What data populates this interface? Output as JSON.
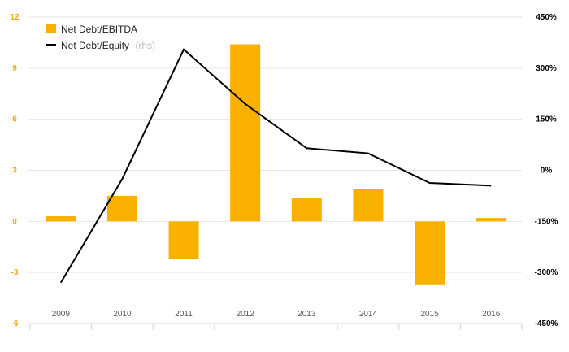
{
  "chart_data": {
    "type": "bar",
    "categories": [
      "2009",
      "2010",
      "2011",
      "2012",
      "2013",
      "2014",
      "2015",
      "2016"
    ],
    "series": [
      {
        "name": "Net Debt/EBITDA",
        "type": "bar",
        "axis": "left",
        "color": "#f9b000",
        "values": [
          0.3,
          1.5,
          -2.2,
          10.4,
          1.4,
          1.9,
          -3.7,
          0.2
        ]
      },
      {
        "name": "Net Debt/Equity",
        "type": "line",
        "axis": "right",
        "color": "#000000",
        "values": [
          -330,
          -25,
          355,
          195,
          65,
          50,
          -37,
          -45
        ]
      }
    ],
    "legend": {
      "position": "top-left",
      "items": [
        {
          "label": "Net Debt/EBITDA",
          "suffix": ""
        },
        {
          "label": "Net Debt/Equity",
          "suffix": "(rhs)"
        }
      ]
    },
    "y_left": {
      "ylim": [
        -6,
        12
      ],
      "ticks": [
        12,
        9,
        6,
        3,
        0,
        -3,
        -6
      ],
      "tick_labels": [
        "12",
        "9",
        "6",
        "3",
        "0",
        "-3",
        "-6"
      ],
      "color": "#f2a900"
    },
    "y_right": {
      "ylim": [
        -450,
        450
      ],
      "ticks": [
        450,
        300,
        150,
        0,
        -150,
        -300,
        -450
      ],
      "tick_labels": [
        "450%",
        "300%",
        "150%",
        "0%",
        "-150%",
        "-300%",
        "-450%"
      ],
      "color": "#000000"
    },
    "grid": true
  }
}
